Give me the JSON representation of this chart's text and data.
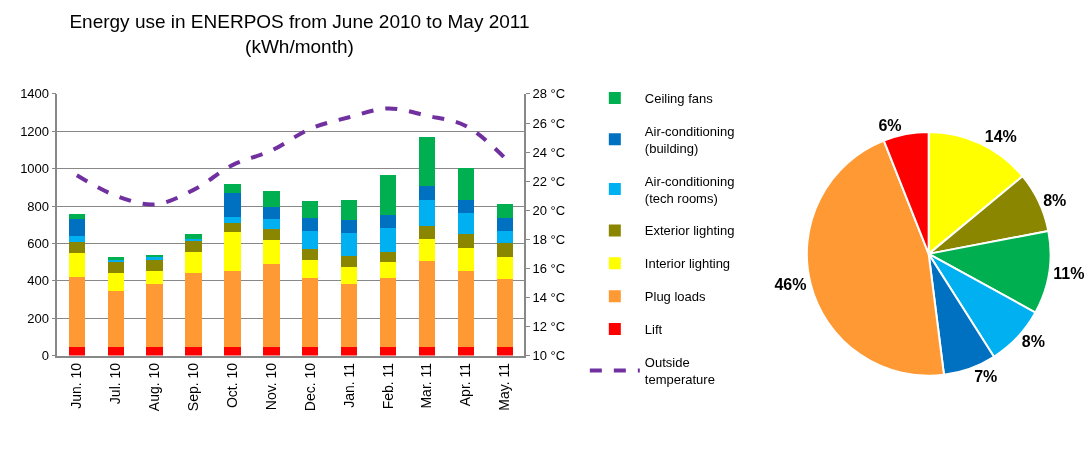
{
  "chart_data": [
    {
      "type": "bar",
      "title": "Energy use in ENERPOS from June 2010 to May 2011\n(kWh/month)",
      "stacked": true,
      "categories": [
        "Jun. 10",
        "Jul. 10",
        "Aug. 10",
        "Sep. 10",
        "Oct. 10",
        "Nov. 10",
        "Dec. 10",
        "Jan. 11",
        "Feb. 11",
        "Mar. 11",
        "Apr. 11",
        "May. 11"
      ],
      "series": [
        {
          "name": "Lift",
          "color": "#ff0000",
          "values": [
            45,
            45,
            45,
            45,
            45,
            45,
            45,
            45,
            45,
            45,
            45,
            45
          ]
        },
        {
          "name": "Plug loads",
          "color": "#ff9933",
          "values": [
            375,
            300,
            340,
            395,
            405,
            445,
            370,
            340,
            370,
            460,
            405,
            365
          ]
        },
        {
          "name": "Interior lighting",
          "color": "#ffff00",
          "values": [
            130,
            95,
            70,
            115,
            210,
            130,
            95,
            90,
            85,
            120,
            125,
            115
          ]
        },
        {
          "name": "Exterior lighting",
          "color": "#8b8600",
          "values": [
            60,
            60,
            60,
            60,
            50,
            55,
            60,
            60,
            55,
            70,
            75,
            75
          ]
        },
        {
          "name": "Air-conditioning (tech rooms)",
          "color": "#00b0f0",
          "values": [
            30,
            15,
            10,
            10,
            30,
            55,
            95,
            120,
            130,
            140,
            115,
            65
          ]
        },
        {
          "name": "Air-conditioning (building)",
          "color": "#0070c0",
          "values": [
            90,
            null,
            null,
            null,
            130,
            65,
            70,
            70,
            65,
            70,
            65,
            70
          ]
        },
        {
          "name": "Ceiling fans",
          "color": "#00b050",
          "values": [
            30,
            10,
            15,
            25,
            50,
            85,
            90,
            110,
            215,
            265,
            175,
            75
          ]
        },
        {
          "name": "Outside temperature",
          "type": "line",
          "axis": "y2",
          "color": "#7030a0",
          "line_style": "dashed",
          "values": [
            22.4,
            21.0,
            20.4,
            21.4,
            23.1,
            24.1,
            25.6,
            26.4,
            27.0,
            26.5,
            25.8,
            23.6
          ]
        }
      ],
      "ylim": [
        0,
        1400
      ],
      "yticks": [
        0,
        200,
        400,
        600,
        800,
        1000,
        1200,
        1400
      ],
      "y2lim": [
        10,
        28
      ],
      "y2ticks": [
        {
          "value": 10,
          "label": "10 °C"
        },
        {
          "value": 12,
          "label": "12 °C"
        },
        {
          "value": 14,
          "label": "14 °C"
        },
        {
          "value": 16,
          "label": "16 °C"
        },
        {
          "value": 18,
          "label": "18 °C"
        },
        {
          "value": 20,
          "label": "20 °C"
        },
        {
          "value": 22,
          "label": "22 °C"
        },
        {
          "value": 24,
          "label": "24 °C"
        },
        {
          "value": 26,
          "label": "26 °C"
        },
        {
          "value": 28,
          "label": "28 °C"
        }
      ],
      "grid": "y",
      "legend": "right"
    },
    {
      "type": "pie",
      "categories": [
        null,
        null,
        null,
        null,
        null,
        null,
        null
      ],
      "values": [
        14,
        8,
        11,
        8,
        7,
        46,
        6
      ],
      "colors": [
        "#ffff00",
        "#8b8600",
        "#00b050",
        "#00b0f0",
        "#0070c0",
        "#ff9933",
        "#ff0000"
      ],
      "value_labels": [
        "14%",
        "8%",
        "11%",
        "8%",
        "7%",
        "46%",
        "6%"
      ]
    }
  ]
}
